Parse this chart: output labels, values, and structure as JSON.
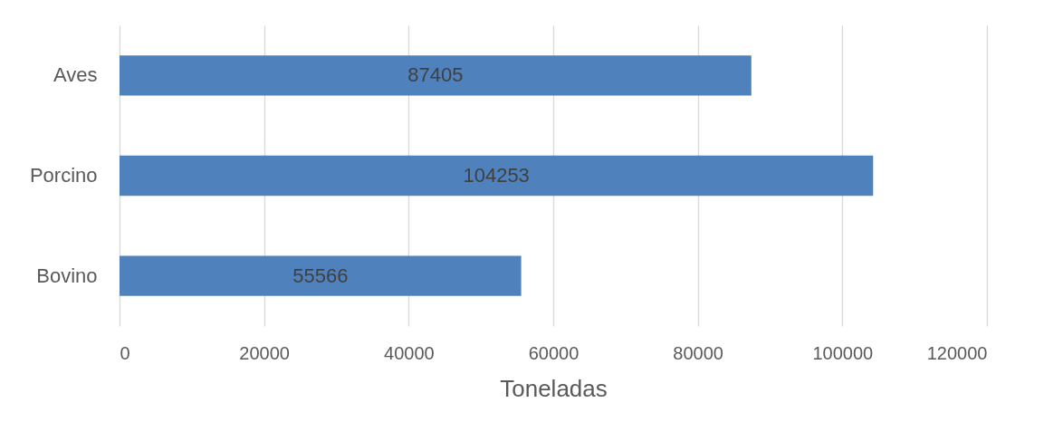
{
  "chart_data": {
    "type": "bar",
    "orientation": "horizontal",
    "xlabel": "Toneladas",
    "categories": [
      "Aves",
      "Porcino",
      "Bovino"
    ],
    "values": [
      87405,
      104253,
      55566
    ],
    "color": "#4f81bd",
    "data_labels": true,
    "xlim": [
      0,
      120000
    ],
    "xticks": [
      0,
      20000,
      40000,
      60000,
      80000,
      100000,
      120000
    ],
    "grid": "x"
  }
}
